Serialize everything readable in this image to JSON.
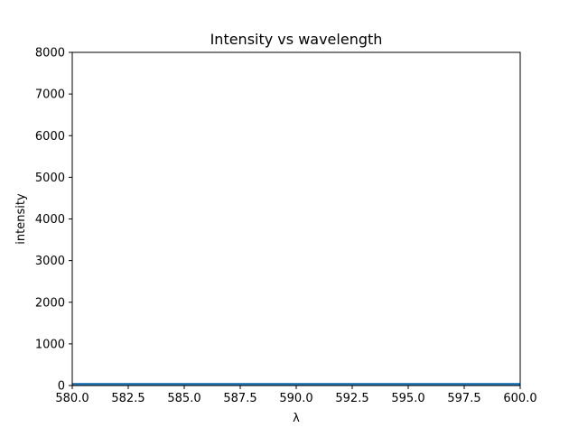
{
  "chart_data": {
    "type": "line",
    "title": "Intensity vs wavelength",
    "xlabel": "λ",
    "ylabel": "intensity",
    "xlim": [
      580.0,
      600.0
    ],
    "ylim": [
      0,
      8000
    ],
    "x_ticks": [
      "580.0",
      "582.5",
      "585.0",
      "587.5",
      "590.0",
      "592.5",
      "595.0",
      "597.5",
      "600.0"
    ],
    "y_ticks": [
      "0",
      "1000",
      "2000",
      "3000",
      "4000",
      "5000",
      "6000",
      "7000",
      "8000"
    ],
    "grid": false,
    "series": [
      {
        "color": "#1f77b4",
        "x": [
          580.0,
          582.5,
          585.0,
          587.5,
          590.0,
          592.5,
          595.0,
          597.5,
          600.0
        ],
        "y": [
          30,
          30,
          30,
          30,
          30,
          30,
          30,
          30,
          30
        ]
      }
    ]
  }
}
